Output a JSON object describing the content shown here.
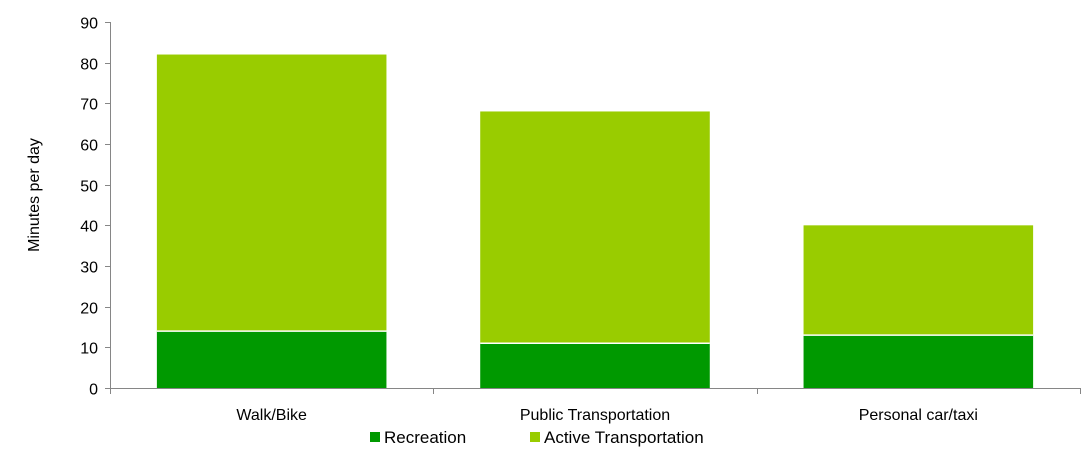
{
  "chart_data": {
    "type": "bar",
    "stacked": true,
    "categories": [
      "Walk/Bike",
      "Public Transportation",
      "Personal car/taxi"
    ],
    "series": [
      {
        "name": "Recreation",
        "values": [
          14,
          11,
          13
        ],
        "color": "#009900"
      },
      {
        "name": "Active Transportation",
        "values": [
          68,
          57,
          27
        ],
        "color": "#99cc00"
      }
    ],
    "ylabel": "Minutes per day",
    "ylim": [
      0,
      90
    ],
    "yticks": [
      0,
      10,
      20,
      30,
      40,
      50,
      60,
      70,
      80,
      90
    ],
    "grid": false,
    "legend_position": "bottom"
  }
}
